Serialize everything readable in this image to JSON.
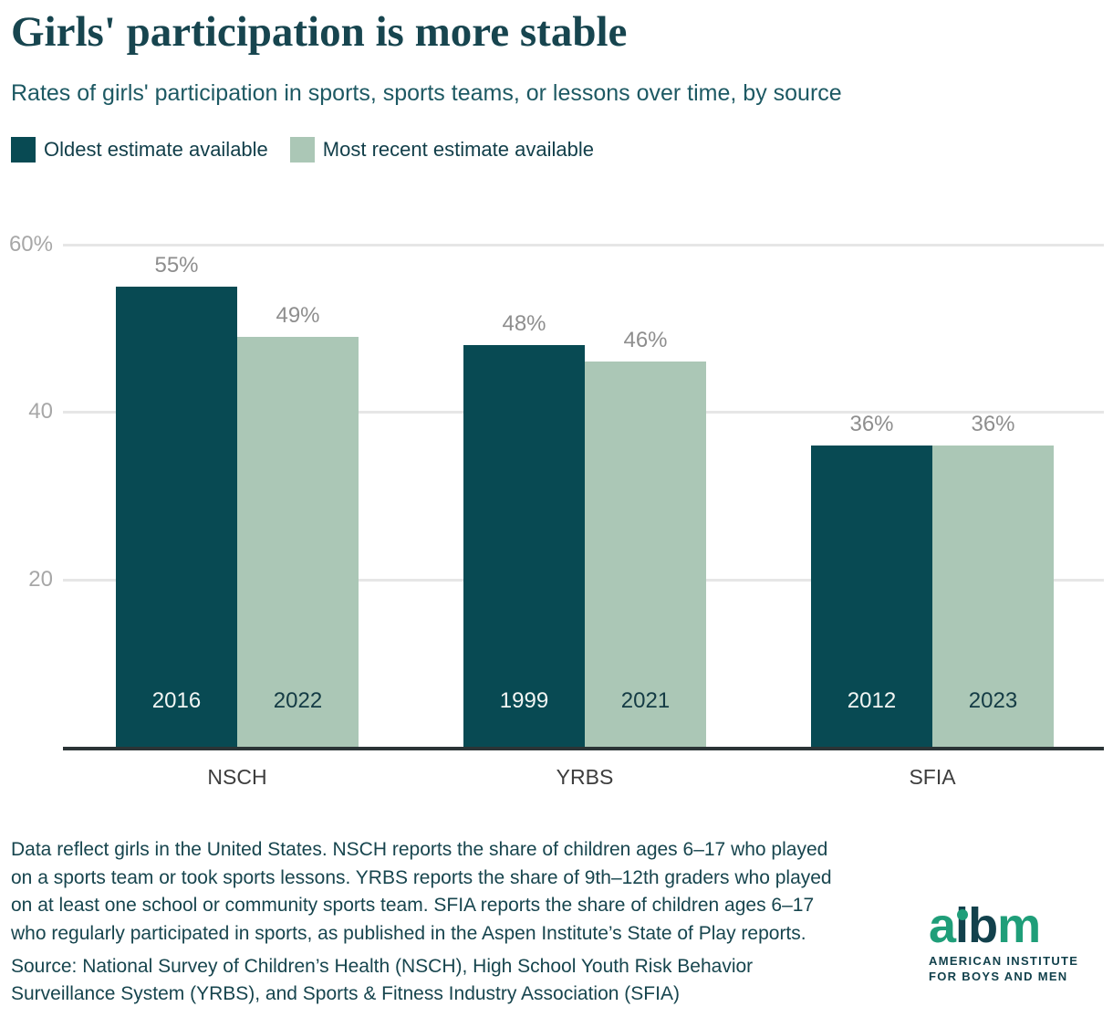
{
  "header": {
    "title": "Girls' participation is more stable",
    "subtitle": "Rates of girls' participation in sports, sports teams, or lessons over time, by source"
  },
  "legend": [
    {
      "label": "Oldest estimate available",
      "color": "#084a53"
    },
    {
      "label": "Most recent estimate available",
      "color": "#abc7b6"
    }
  ],
  "chart_data": {
    "type": "bar",
    "title": "Girls' participation is more stable",
    "subtitle": "Rates of girls' participation in sports, sports teams, or lessons over time, by source",
    "categories": [
      "NSCH",
      "YRBS",
      "SFIA"
    ],
    "series": [
      {
        "name": "Oldest estimate available",
        "color": "#084a53",
        "values": [
          55,
          48,
          36
        ],
        "years": [
          "2016",
          "1999",
          "2012"
        ],
        "value_labels": [
          "55%",
          "48%",
          "36%"
        ]
      },
      {
        "name": "Most recent estimate available",
        "color": "#abc7b6",
        "values": [
          49,
          46,
          36
        ],
        "years": [
          "2022",
          "2021",
          "2023"
        ],
        "value_labels": [
          "49%",
          "46%",
          "36%"
        ]
      }
    ],
    "ylim": [
      0,
      60
    ],
    "yticks": [
      {
        "value": 60,
        "label": "60%"
      },
      {
        "value": 40,
        "label": "40"
      },
      {
        "value": 20,
        "label": "20"
      }
    ],
    "grid": true,
    "legend_position": "top",
    "year_label_color_on_dark": "#f2f6f4",
    "year_label_color_on_light": "#143b44"
  },
  "footnote_lines": [
    "Data reflect girls in the United States. NSCH reports the share of children ages 6–17 who played",
    "on a sports team or took sports lessons. YRBS reports the share of 9th–12th graders who played",
    "on at least one school or community sports team. SFIA reports the share of children ages 6–17",
    "who regularly participated in sports, as published in the Aspen Institute’s State of Play reports."
  ],
  "source_lines": [
    "Source: National Survey of Children’s Health (NSCH), High School Youth Risk Behavior",
    "Surveillance System (YRBS), and Sports & Fitness Industry Association (SFIA)"
  ],
  "logo": {
    "letters": [
      "a",
      "i",
      "b",
      "m"
    ],
    "letter_colors": [
      "#1f9e79",
      "#12414c",
      "#12414c",
      "#1f9e79"
    ],
    "green": "#1f9e79",
    "dark": "#12414c",
    "tagline_line1": "AMERICAN INSTITUTE",
    "tagline_line2": "FOR BOYS AND MEN"
  }
}
